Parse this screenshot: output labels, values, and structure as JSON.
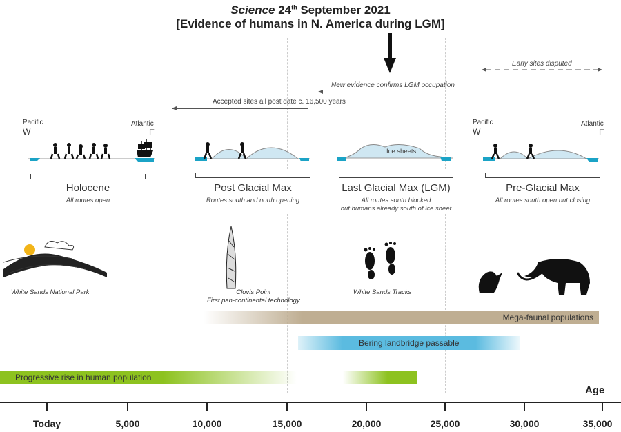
{
  "header": {
    "title_italic": "Science",
    "title_rest": " 24",
    "title_sup": "th",
    "title_end": " September 2021",
    "subtitle": "[Evidence of humans in N. America during LGM]"
  },
  "annotations": {
    "early_sites": "Early sites disputed",
    "new_evidence": "New evidence confirms LGM occupation",
    "accepted_sites": "Accepted sites all post date c. 16,500 years"
  },
  "labels": {
    "pacific": "Pacific",
    "west": "W",
    "atlantic": "Atlantic",
    "east": "E",
    "ice_sheets": "Ice sheets"
  },
  "eras": [
    {
      "name": "Holocene",
      "desc": "All routes open"
    },
    {
      "name": "Post Glacial Max",
      "desc": "Routes south and north opening"
    },
    {
      "name": "Last Glacial Max (LGM)",
      "desc": "All routes south blocked",
      "desc2": "but humans already south of ice sheet"
    },
    {
      "name": "Pre-Glacial Max",
      "desc": "All routes south open but closing"
    }
  ],
  "images": {
    "park": "White Sands National Park",
    "clovis": "Clovis Point",
    "clovis2": "First pan-continental technology",
    "tracks": "White Sands Tracks"
  },
  "bars": {
    "megafauna": "Mega-faunal populations",
    "bering": "Bering landbridge passable",
    "human": "Progressive rise in human population"
  },
  "colors": {
    "megafauna": "#bfae92",
    "bering": "#5bbbe0",
    "human": "#8dc21f",
    "sea": "#1ba3c6",
    "ice": "#cfe7f2"
  },
  "axis": {
    "label": "Age",
    "ticks": [
      "Today",
      "5,000",
      "10,000",
      "15,000",
      "20,000",
      "25,000",
      "30,000",
      "35,000"
    ]
  }
}
